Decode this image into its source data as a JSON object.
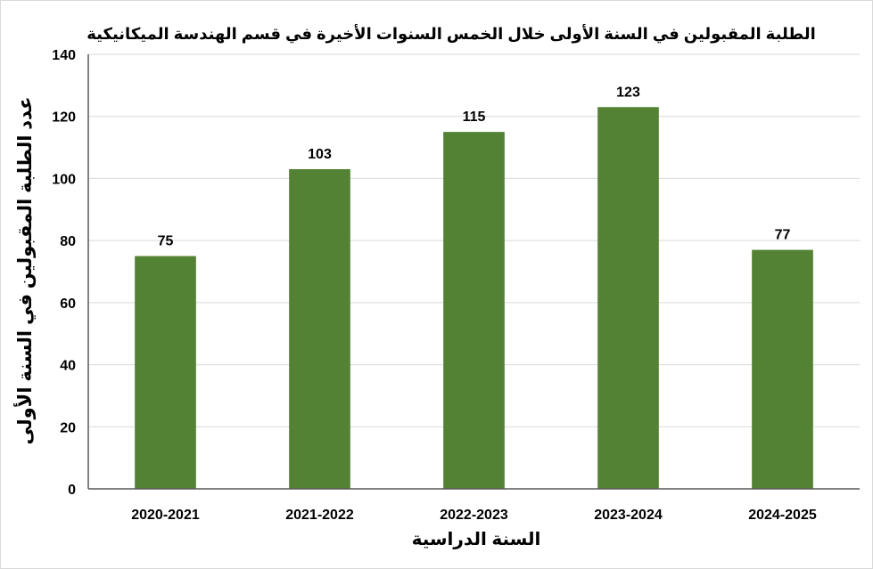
{
  "chart_data": {
    "type": "bar",
    "title": "الطلبة المقبولين في السنة الأولى خلال الخمس السنوات الأخيرة في قسم الهندسة الميكانيكية",
    "xlabel": "السنة الدراسية",
    "ylabel": "عدد الطلبة المقبولين في السنة الأولى",
    "categories": [
      "2020-2021",
      "2021-2022",
      "2022-2023",
      "2023-2024",
      "2024-2025"
    ],
    "values": [
      75,
      103,
      115,
      123,
      77
    ],
    "ylim": [
      0,
      140
    ],
    "yticks": [
      0,
      20,
      40,
      60,
      80,
      100,
      120,
      140
    ],
    "grid": true,
    "data_labels": true,
    "bar_color": "#548235",
    "legend": "none"
  }
}
